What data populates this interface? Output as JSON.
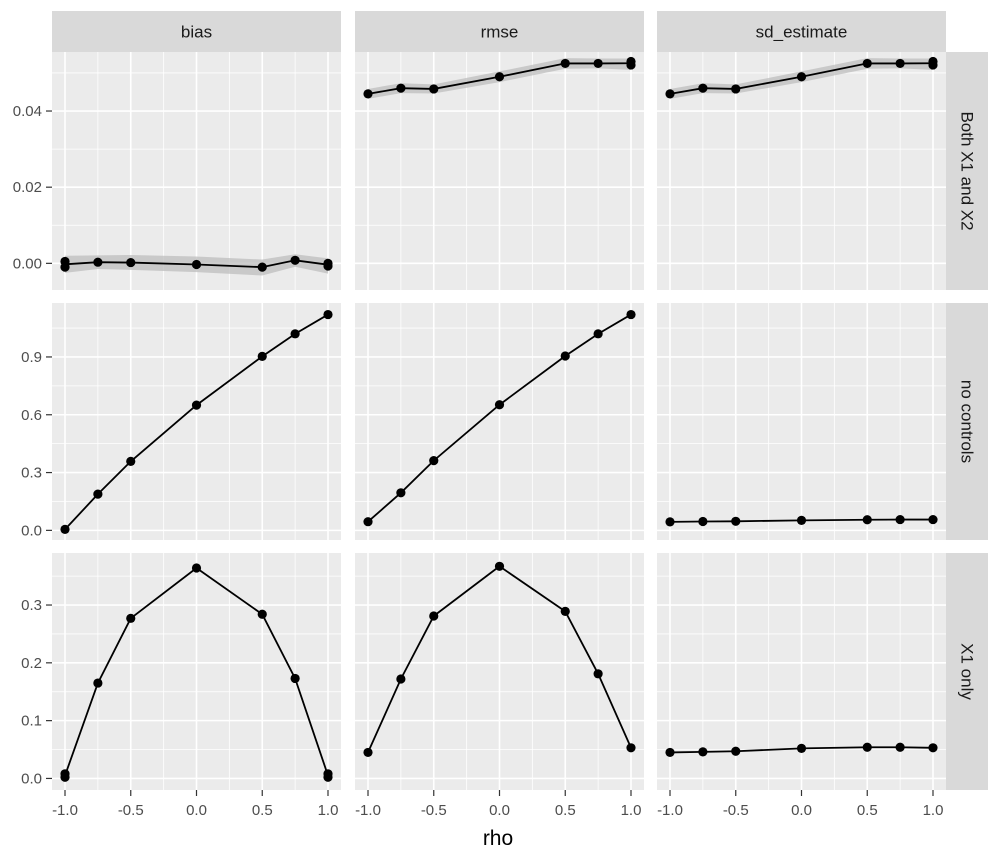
{
  "chart_data": {
    "type": "line",
    "facets": {
      "columns": [
        "bias",
        "rmse",
        "sd_estimate"
      ],
      "rows": [
        "Both X1 and X2",
        "no controls",
        "X1 only"
      ]
    },
    "xlabel": "rho",
    "ylabel": "",
    "xlim": [
      -1.0,
      1.0
    ],
    "x_ticks": [
      "-1.0",
      "-0.5",
      "0.0",
      "0.5",
      "1.0"
    ],
    "y_axes": [
      {
        "row": "Both X1 and X2",
        "ylim": [
          -0.007,
          0.0555
        ],
        "ticks": [
          0.0,
          0.02,
          0.04
        ],
        "tick_labels": [
          "0.00",
          "0.02",
          "0.04"
        ]
      },
      {
        "row": "no controls",
        "ylim": [
          -0.05,
          1.18
        ],
        "ticks": [
          0.0,
          0.3,
          0.6,
          0.9
        ],
        "tick_labels": [
          "0.0",
          "0.3",
          "0.6",
          "0.9"
        ]
      },
      {
        "row": "X1 only",
        "ylim": [
          -0.02,
          0.39
        ],
        "ticks": [
          0.0,
          0.1,
          0.2,
          0.3
        ],
        "tick_labels": [
          "0.0",
          "0.1",
          "0.2",
          "0.3"
        ]
      }
    ],
    "grid": true,
    "band": "shaded uncertainty ribbon around each line",
    "colors": {
      "panel_bg": "#ebebeb",
      "strip_bg": "#d9d9d9",
      "grid": "#ffffff",
      "line": "#000000",
      "ribbon": "#bdbdbd"
    },
    "panels": [
      {
        "row": "Both X1 and X2",
        "col": "bias",
        "points": [
          [
            -1,
            -0.001
          ],
          [
            -1,
            0.0005
          ],
          [
            -0.75,
            0.0003
          ],
          [
            -0.5,
            0.0002
          ],
          [
            0,
            -0.0003
          ],
          [
            0.5,
            -0.001
          ],
          [
            0.75,
            0.0008
          ],
          [
            1,
            -0.0007
          ],
          [
            1,
            0.0
          ]
        ],
        "band": [
          [
            -1,
            -0.0025,
            0.002
          ],
          [
            -0.75,
            -0.0015,
            0.0021
          ],
          [
            -0.5,
            -0.0017,
            0.0022
          ],
          [
            0,
            -0.0023,
            0.0018
          ],
          [
            0.5,
            -0.0032,
            0.001
          ],
          [
            0.75,
            -0.0009,
            0.0024
          ],
          [
            1,
            -0.0027,
            0.0013
          ]
        ]
      },
      {
        "row": "Both X1 and X2",
        "col": "rmse",
        "points": [
          [
            -1,
            0.0445
          ],
          [
            -0.75,
            0.046
          ],
          [
            -0.5,
            0.0458
          ],
          [
            0,
            0.049
          ],
          [
            0.5,
            0.0525
          ],
          [
            0.75,
            0.0525
          ],
          [
            1,
            0.0521
          ],
          [
            1,
            0.053
          ]
        ],
        "band": [
          [
            -1,
            0.0432,
            0.0458
          ],
          [
            -0.75,
            0.0447,
            0.0473
          ],
          [
            -0.5,
            0.0446,
            0.047
          ],
          [
            0,
            0.0476,
            0.0504
          ],
          [
            0.5,
            0.0511,
            0.0539
          ],
          [
            0.75,
            0.0512,
            0.0538
          ],
          [
            1,
            0.0508,
            0.0538
          ]
        ]
      },
      {
        "row": "Both X1 and X2",
        "col": "sd_estimate",
        "points": [
          [
            -1,
            0.0445
          ],
          [
            -0.75,
            0.046
          ],
          [
            -0.5,
            0.0458
          ],
          [
            0,
            0.049
          ],
          [
            0.5,
            0.0525
          ],
          [
            0.75,
            0.0525
          ],
          [
            1,
            0.0521
          ],
          [
            1,
            0.053
          ]
        ],
        "band": [
          [
            -1,
            0.0432,
            0.0458
          ],
          [
            -0.75,
            0.0447,
            0.0473
          ],
          [
            -0.5,
            0.0446,
            0.047
          ],
          [
            0,
            0.0476,
            0.0504
          ],
          [
            0.5,
            0.0511,
            0.0539
          ],
          [
            0.75,
            0.0512,
            0.0538
          ],
          [
            1,
            0.0508,
            0.0538
          ]
        ]
      },
      {
        "row": "no controls",
        "col": "bias",
        "points": [
          [
            -1,
            0.005
          ],
          [
            -0.75,
            0.188
          ],
          [
            -0.5,
            0.358
          ],
          [
            0,
            0.65
          ],
          [
            0.5,
            0.903
          ],
          [
            0.75,
            1.02
          ],
          [
            1,
            1.12
          ]
        ],
        "band": []
      },
      {
        "row": "no controls",
        "col": "rmse",
        "points": [
          [
            -1,
            0.045
          ],
          [
            -0.75,
            0.195
          ],
          [
            -0.5,
            0.362
          ],
          [
            0,
            0.652
          ],
          [
            0.5,
            0.905
          ],
          [
            0.75,
            1.02
          ],
          [
            1,
            1.12
          ]
        ],
        "band": []
      },
      {
        "row": "no controls",
        "col": "sd_estimate",
        "points": [
          [
            -1,
            0.044
          ],
          [
            -0.75,
            0.046
          ],
          [
            -0.5,
            0.047
          ],
          [
            0,
            0.052
          ],
          [
            0.5,
            0.055
          ],
          [
            0.75,
            0.056
          ],
          [
            1,
            0.056
          ]
        ],
        "band": []
      },
      {
        "row": "X1 only",
        "col": "bias",
        "points": [
          [
            -1,
            0.002
          ],
          [
            -1,
            0.008
          ],
          [
            -0.75,
            0.165
          ],
          [
            -0.5,
            0.277
          ],
          [
            0,
            0.364
          ],
          [
            0.5,
            0.284
          ],
          [
            0.75,
            0.173
          ],
          [
            1,
            0.008
          ],
          [
            1,
            0.002
          ]
        ],
        "band": []
      },
      {
        "row": "X1 only",
        "col": "rmse",
        "points": [
          [
            -1,
            0.045
          ],
          [
            -0.75,
            0.172
          ],
          [
            -0.5,
            0.281
          ],
          [
            0,
            0.367
          ],
          [
            0.5,
            0.289
          ],
          [
            0.75,
            0.181
          ],
          [
            1,
            0.053
          ]
        ],
        "band": []
      },
      {
        "row": "X1 only",
        "col": "sd_estimate",
        "points": [
          [
            -1,
            0.045
          ],
          [
            -0.75,
            0.046
          ],
          [
            -0.5,
            0.047
          ],
          [
            0,
            0.052
          ],
          [
            0.5,
            0.054
          ],
          [
            0.75,
            0.054
          ],
          [
            1,
            0.053
          ]
        ],
        "band": []
      }
    ]
  }
}
